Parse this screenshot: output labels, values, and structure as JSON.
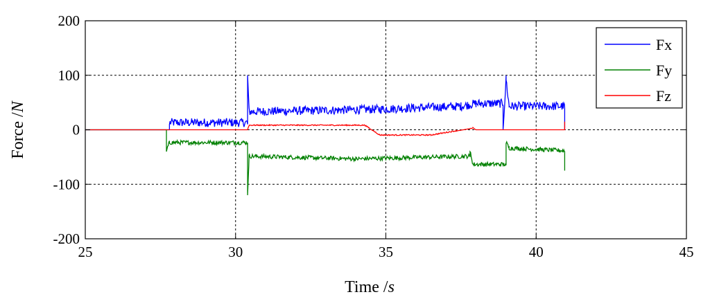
{
  "chart_data": {
    "type": "line",
    "xlabel": "Time /",
    "xlabel_unit": "s",
    "ylabel": "Force /",
    "ylabel_unit": "N",
    "xlim": [
      25,
      45
    ],
    "ylim": [
      -200,
      200
    ],
    "xticks": [
      "25",
      "30",
      "35",
      "40",
      "45"
    ],
    "yticks": [
      "200",
      "100",
      "0",
      "-100",
      "-200"
    ],
    "grid": true,
    "legend_position": "top-right",
    "series": [
      {
        "name": "Fx",
        "color": "#0000ff",
        "noise": 8,
        "points": [
          [
            25,
            0
          ],
          [
            27.8,
            0
          ],
          [
            27.8,
            10
          ],
          [
            30.4,
            10
          ],
          [
            30.4,
            100
          ],
          [
            30.45,
            30
          ],
          [
            33.5,
            33
          ],
          [
            35,
            35
          ],
          [
            37.5,
            40
          ],
          [
            38,
            45
          ],
          [
            38.9,
            45
          ],
          [
            38.9,
            0
          ],
          [
            39.0,
            90
          ],
          [
            39.1,
            40
          ],
          [
            40.95,
            40
          ],
          [
            40.95,
            0
          ]
        ]
      },
      {
        "name": "Fy",
        "color": "#008000",
        "noise": 4,
        "points": [
          [
            25,
            0
          ],
          [
            27.7,
            0
          ],
          [
            27.7,
            -40
          ],
          [
            27.8,
            -25
          ],
          [
            30.4,
            -25
          ],
          [
            30.4,
            -120
          ],
          [
            30.45,
            -50
          ],
          [
            34,
            -55
          ],
          [
            37.8,
            -50
          ],
          [
            37.8,
            -40
          ],
          [
            37.9,
            -65
          ],
          [
            39.0,
            -65
          ],
          [
            39.0,
            -25
          ],
          [
            39.1,
            -35
          ],
          [
            40.95,
            -40
          ],
          [
            40.95,
            -75
          ]
        ]
      },
      {
        "name": "Fz",
        "color": "#ff0000",
        "noise": 1,
        "points": [
          [
            25,
            0
          ],
          [
            30.4,
            0
          ],
          [
            30.45,
            8
          ],
          [
            34.3,
            8
          ],
          [
            34.8,
            -10
          ],
          [
            36.5,
            -10
          ],
          [
            37.9,
            3
          ],
          [
            38.0,
            0
          ],
          [
            39.0,
            0
          ],
          [
            40.95,
            0
          ],
          [
            40.95,
            15
          ]
        ]
      }
    ]
  }
}
